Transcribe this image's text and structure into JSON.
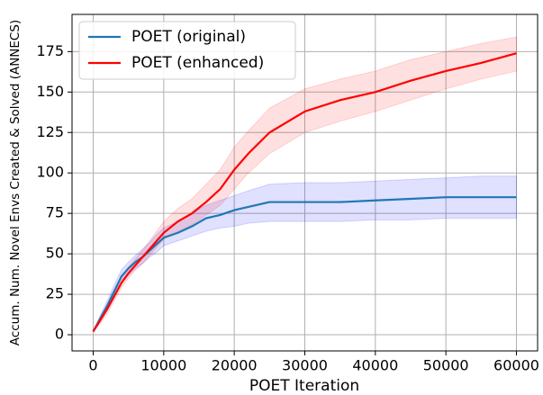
{
  "chart_data": {
    "type": "line",
    "x_label": "POET Iteration",
    "y_label": "Accum. Num. Novel Envs Created & Solved (ANNECS)",
    "x": [
      0,
      1000,
      2000,
      3000,
      4000,
      5000,
      6000,
      7000,
      8000,
      9000,
      10000,
      12000,
      14000,
      16000,
      18000,
      20000,
      22000,
      25000,
      30000,
      35000,
      40000,
      45000,
      50000,
      55000,
      60000
    ],
    "series": [
      {
        "name": "POET (original)",
        "color": "#1f77b4",
        "band_color": "#0000ff",
        "values": [
          2,
          10,
          18,
          27,
          36,
          41,
          45,
          48,
          52,
          56,
          60,
          63,
          67,
          72,
          74,
          77,
          79,
          82,
          82,
          82,
          83,
          84,
          85,
          85,
          85
        ],
        "lower": [
          2,
          8,
          15,
          23,
          32,
          37,
          41,
          44,
          48,
          51,
          55,
          58,
          61,
          64,
          66,
          67,
          69,
          70,
          70,
          70,
          71,
          71,
          72,
          72,
          72
        ],
        "upper": [
          2,
          12,
          21,
          31,
          40,
          45,
          49,
          53,
          57,
          62,
          66,
          70,
          75,
          80,
          83,
          86,
          89,
          93,
          94,
          94,
          95,
          96,
          97,
          98,
          98
        ]
      },
      {
        "name": "POET (enhanced)",
        "color": "#ff0000",
        "band_color": "#ff0000",
        "values": [
          2,
          9,
          16,
          24,
          32,
          38,
          43,
          48,
          53,
          58,
          63,
          70,
          75,
          82,
          90,
          102,
          112,
          125,
          138,
          145,
          150,
          157,
          163,
          168,
          174
        ],
        "lower": [
          2,
          7,
          13,
          21,
          29,
          35,
          40,
          44,
          49,
          54,
          59,
          64,
          68,
          74,
          80,
          90,
          100,
          112,
          125,
          132,
          138,
          145,
          152,
          158,
          163
        ],
        "upper": [
          2,
          11,
          19,
          28,
          36,
          42,
          47,
          52,
          58,
          64,
          70,
          78,
          84,
          93,
          102,
          116,
          126,
          140,
          152,
          158,
          163,
          170,
          175,
          180,
          184
        ]
      }
    ],
    "xlim": [
      -3000,
      63000
    ],
    "xticks": [
      0,
      10000,
      20000,
      30000,
      40000,
      50000,
      60000
    ],
    "ylim": [
      -10,
      198
    ],
    "yticks": [
      0,
      25,
      50,
      75,
      100,
      125,
      150,
      175
    ],
    "grid": true,
    "legend": "upper left"
  }
}
